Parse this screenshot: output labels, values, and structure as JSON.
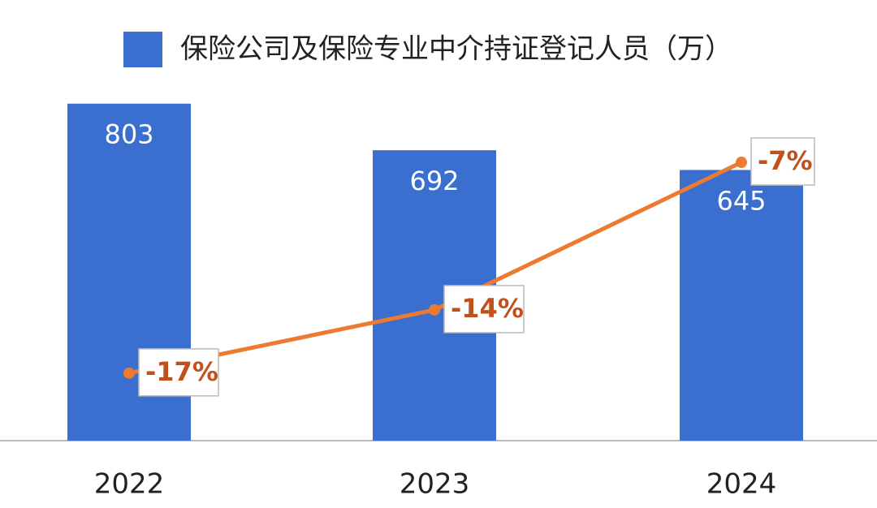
{
  "chart_data": {
    "type": "bar",
    "categories": [
      "2022",
      "2023",
      "2024"
    ],
    "series": [
      {
        "name": "保险公司及保险专业中介持证登记人员（万）",
        "type": "bar",
        "color": "#3a6fcf",
        "values": [
          803,
          692,
          645
        ]
      },
      {
        "type": "line",
        "color": "#ec7a30",
        "axis": "y2",
        "values": [
          -17,
          -14,
          -7
        ],
        "value_labels": [
          "-17%",
          "-14%",
          "-7%"
        ],
        "label_color": "#c2501a"
      }
    ],
    "ylim": [
      0,
      1050
    ],
    "y2lim": [
      -20.2,
      0.7
    ]
  }
}
